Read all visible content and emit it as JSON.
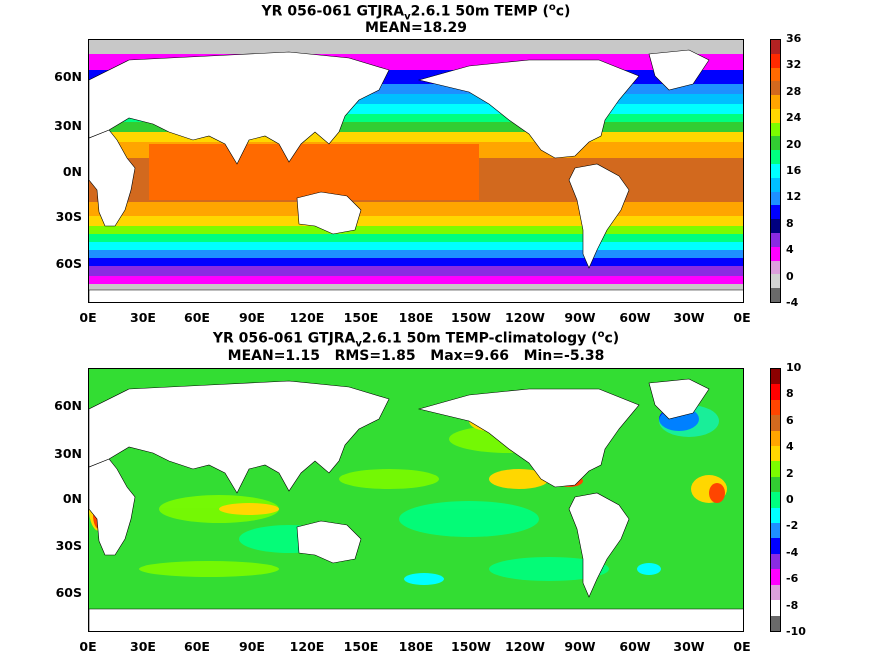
{
  "top": {
    "title_pre": "YR 056-061 GTJRA",
    "title_sub": "v",
    "title_mid": "2.6.1 50m TEMP (",
    "title_sup": "o",
    "title_end": "c)",
    "subtitle": "MEAN=18.29",
    "colorbar_labels": [
      "36",
      "32",
      "28",
      "24",
      "20",
      "16",
      "12",
      "8",
      "4",
      "0",
      "-4"
    ],
    "colorbar_colors": [
      "#b22222",
      "#ff2a00",
      "#ff6a00",
      "#d2691e",
      "#ffa500",
      "#ffd700",
      "#7cfc00",
      "#32cd32",
      "#00ff7f",
      "#00ffff",
      "#00bfff",
      "#1e90ff",
      "#0000ff",
      "#000080",
      "#8a2be2",
      "#ff00ff",
      "#dda0dd",
      "#d3d3d3",
      "#696969"
    ]
  },
  "bottom": {
    "title_pre": "YR 056-061 GTJRA",
    "title_sub": "v",
    "title_mid": "2.6.1 50m TEMP-climatology (",
    "title_sup": "o",
    "title_end": "c)",
    "subtitle": "MEAN=1.15   RMS=1.85   Max=9.66   Min=-5.38",
    "colorbar_labels": [
      "10",
      "8",
      "6",
      "4",
      "2",
      "0",
      "-2",
      "-4",
      "-6",
      "-8",
      "-10"
    ],
    "colorbar_colors": [
      "#8b0000",
      "#ff0000",
      "#ff4500",
      "#d2691e",
      "#ffa500",
      "#ffd700",
      "#7cfc00",
      "#32cd32",
      "#00ff7f",
      "#00ffff",
      "#1e90ff",
      "#0000ff",
      "#8a2be2",
      "#ff00ff",
      "#dda0dd",
      "#ffffff",
      "#696969"
    ]
  },
  "lat_labels": [
    "60N",
    "30N",
    "0N",
    "30S",
    "60S"
  ],
  "lon_labels": [
    "0E",
    "30E",
    "60E",
    "90E",
    "120E",
    "150E",
    "180E",
    "150W",
    "120W",
    "90W",
    "60W",
    "30W",
    "0E"
  ],
  "colors": {
    "land": "#ffffff",
    "ice": "#c8c8c8",
    "anom_base": "#33dd33"
  }
}
